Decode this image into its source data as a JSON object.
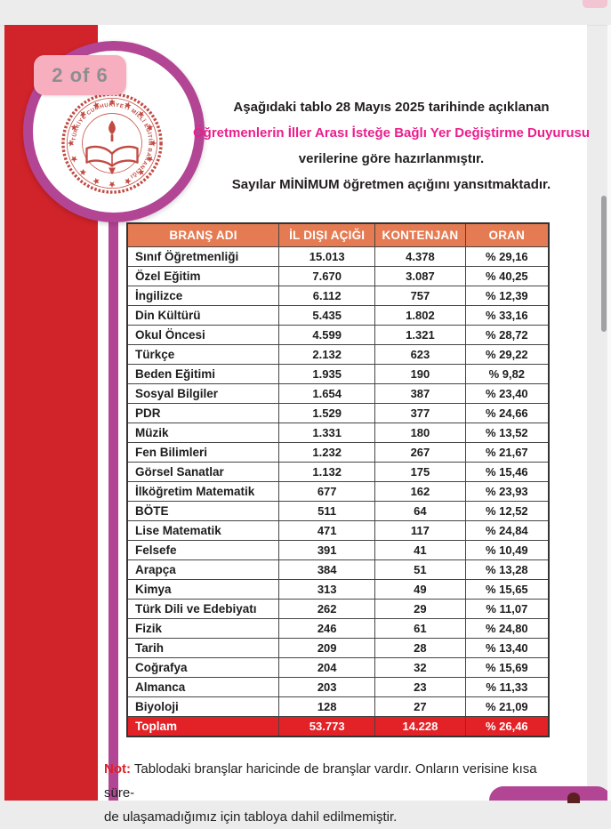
{
  "viewer": {
    "page_indicator": "2 of 6"
  },
  "logo": {
    "name": "T.C. Millî Eğitim Bakanlığı emblem",
    "ring_text": "TÜRKİYE CUMHURİYETİ MİLLÎ EĞİTİM BAKANLIĞI"
  },
  "header": {
    "line1": "Aşağıdaki tablo 28 Mayıs 2025 tarihinde açıklanan",
    "line2_highlight": "Öğretmenlerin İller Arası İsteğe Bağlı Yer Değiştirme Duyurusu",
    "line3": "verilerine göre hazırlanmıştır.",
    "line4": "Sayılar MİNİMUM öğretmen açığını yansıtmaktadır."
  },
  "chart_data": {
    "type": "table",
    "columns": [
      "BRANŞ ADI",
      "İL DIŞI AÇIĞI",
      "KONTENJAN",
      "ORAN"
    ],
    "rows": [
      [
        "Sınıf Öğretmenliği",
        "15.013",
        "4.378",
        "% 29,16"
      ],
      [
        "Özel Eğitim",
        "7.670",
        "3.087",
        "% 40,25"
      ],
      [
        "İngilizce",
        "6.112",
        "757",
        "% 12,39"
      ],
      [
        "Din Kültürü",
        "5.435",
        "1.802",
        "% 33,16"
      ],
      [
        "Okul Öncesi",
        "4.599",
        "1.321",
        "% 28,72"
      ],
      [
        "Türkçe",
        "2.132",
        "623",
        "% 29,22"
      ],
      [
        "Beden Eğitimi",
        "1.935",
        "190",
        "% 9,82"
      ],
      [
        "Sosyal Bilgiler",
        "1.654",
        "387",
        "% 23,40"
      ],
      [
        "PDR",
        "1.529",
        "377",
        "% 24,66"
      ],
      [
        "Müzik",
        "1.331",
        "180",
        "% 13,52"
      ],
      [
        "Fen Bilimleri",
        "1.232",
        "267",
        "% 21,67"
      ],
      [
        "Görsel Sanatlar",
        "1.132",
        "175",
        "% 15,46"
      ],
      [
        "İlköğretim Matematik",
        "677",
        "162",
        "% 23,93"
      ],
      [
        "BÖTE",
        "511",
        "64",
        "% 12,52"
      ],
      [
        "Lise Matematik",
        "471",
        "117",
        "% 24,84"
      ],
      [
        "Felsefe",
        "391",
        "41",
        "% 10,49"
      ],
      [
        "Arapça",
        "384",
        "51",
        "% 13,28"
      ],
      [
        "Kimya",
        "313",
        "49",
        "% 15,65"
      ],
      [
        "Türk Dili ve Edebiyatı",
        "262",
        "29",
        "% 11,07"
      ],
      [
        "Fizik",
        "246",
        "61",
        "% 24,80"
      ],
      [
        "Tarih",
        "209",
        "28",
        "% 13,40"
      ],
      [
        "Coğrafya",
        "204",
        "32",
        "% 15,69"
      ],
      [
        "Almanca",
        "203",
        "23",
        "% 11,33"
      ],
      [
        "Biyoloji",
        "128",
        "27",
        "% 21,09"
      ]
    ],
    "total_row": [
      "Toplam",
      "53.773",
      "14.228",
      "% 26,46"
    ]
  },
  "note": {
    "label": "Not:",
    "line1": "Tablodaki branşlar haricinde de branşlar vardır.  Onların verisine kısa süre-",
    "line2": "de ulaşamadığımız için tabloya dahil edilmemiştir."
  },
  "colors": {
    "accent_red_band": "#d1232a",
    "magenta_accent": "#b34595",
    "title_pink": "#ec1e8c",
    "table_header_orange": "#e57b52",
    "total_row_red": "#e32227",
    "badge_pink": "#f7afc0",
    "note_red": "#e31e24"
  }
}
